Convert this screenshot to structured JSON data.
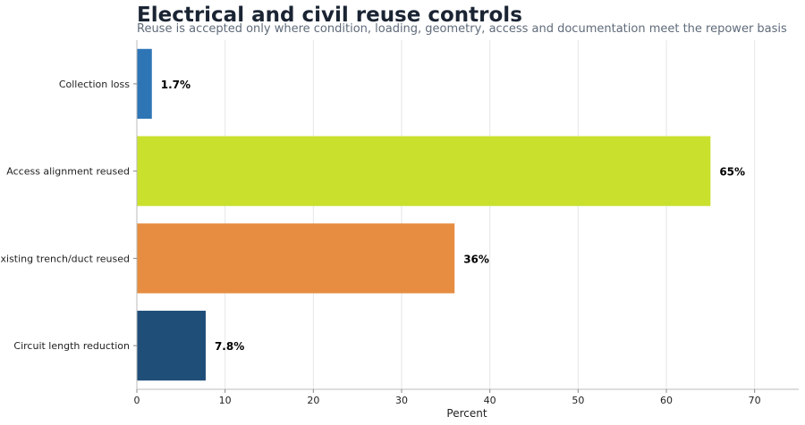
{
  "chart_data": {
    "type": "bar",
    "orientation": "horizontal",
    "title": "Electrical and civil reuse controls",
    "subtitle": "Reuse is accepted only where condition, loading, geometry, access and documentation meet the repower basis",
    "xlabel": "Percent",
    "ylabel": "",
    "xlim": [
      0,
      75
    ],
    "xticks": [
      0,
      10,
      20,
      30,
      40,
      50,
      60,
      70
    ],
    "grid": "vertical",
    "categories": [
      "Collection loss",
      "Access alignment reused",
      "Existing trench/duct reused",
      "Circuit length reduction"
    ],
    "values": [
      1.7,
      65,
      36,
      7.8
    ],
    "value_labels": [
      "1.7%",
      "65%",
      "36%",
      "7.8%"
    ],
    "colors": [
      "#2e75b6",
      "#c9e12d",
      "#e68d42",
      "#1f4e79"
    ]
  }
}
